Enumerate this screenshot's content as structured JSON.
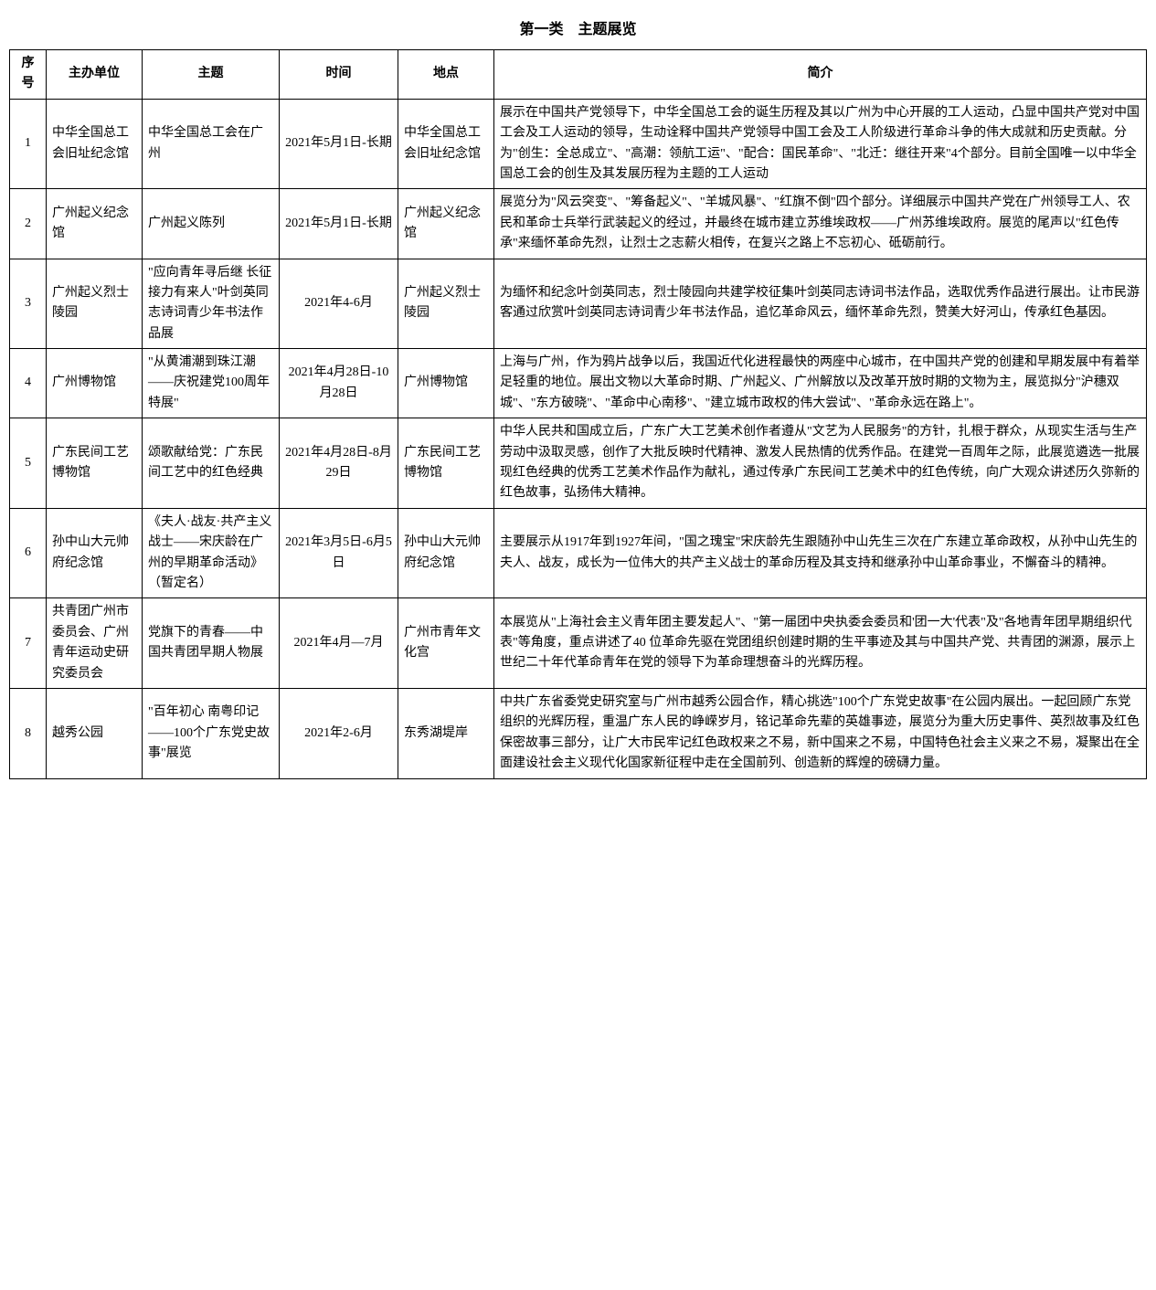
{
  "title": "第一类　主题展览",
  "headers": {
    "idx": "序号",
    "org": "主办单位",
    "theme": "主题",
    "time": "时间",
    "loc": "地点",
    "desc": "简介"
  },
  "rows": [
    {
      "idx": "1",
      "org": "中华全国总工会旧址纪念馆",
      "theme": "中华全国总工会在广州",
      "time": "2021年5月1日-长期",
      "loc": "中华全国总工会旧址纪念馆",
      "desc": "展示在中国共产党领导下，中华全国总工会的诞生历程及其以广州为中心开展的工人运动，凸显中国共产党对中国工会及工人运动的领导，生动诠释中国共产党领导中国工会及工人阶级进行革命斗争的伟大成就和历史贡献。分为\"创生：全总成立\"、\"高潮：领航工运\"、\"配合：国民革命\"、\"北迁：继往开来\"4个部分。目前全国唯一以中华全国总工会的创生及其发展历程为主题的工人运动"
    },
    {
      "idx": "2",
      "org": "广州起义纪念馆",
      "theme": "广州起义陈列",
      "time": "2021年5月1日-长期",
      "loc": "广州起义纪念馆",
      "desc": "展览分为\"风云突变\"、\"筹备起义\"、\"羊城风暴\"、\"红旗不倒\"四个部分。详细展示中国共产党在广州领导工人、农民和革命士兵举行武装起义的经过，并最终在城市建立苏维埃政权——广州苏维埃政府。展览的尾声以\"红色传承\"来缅怀革命先烈，让烈士之志薪火相传，在复兴之路上不忘初心、砥砺前行。"
    },
    {
      "idx": "3",
      "org": "广州起义烈士陵园",
      "theme": "\"应向青年寻后继 长征接力有来人\"叶剑英同志诗词青少年书法作品展",
      "time": "2021年4-6月",
      "loc": "广州起义烈士陵园",
      "desc": "为缅怀和纪念叶剑英同志，烈士陵园向共建学校征集叶剑英同志诗词书法作品，选取优秀作品进行展出。让市民游客通过欣赏叶剑英同志诗词青少年书法作品，追忆革命风云，缅怀革命先烈，赞美大好河山，传承红色基因。"
    },
    {
      "idx": "4",
      "org": "广州博物馆",
      "theme": "\"从黄浦潮到珠江潮——庆祝建党100周年特展\"",
      "time": "2021年4月28日-10月28日",
      "loc": "广州博物馆",
      "desc": "上海与广州，作为鸦片战争以后，我国近代化进程最快的两座中心城市，在中国共产党的创建和早期发展中有着举足轻重的地位。展出文物以大革命时期、广州起义、广州解放以及改革开放时期的文物为主，展览拟分\"沪穗双城\"、\"东方破晓\"、\"革命中心南移\"、\"建立城市政权的伟大尝试\"、\"革命永远在路上\"。"
    },
    {
      "idx": "5",
      "org": "广东民间工艺博物馆",
      "theme": "颂歌献给党：广东民间工艺中的红色经典",
      "time": "2021年4月28日-8月29日",
      "loc": "广东民间工艺博物馆",
      "desc": "中华人民共和国成立后，广东广大工艺美术创作者遵从\"文艺为人民服务\"的方针，扎根于群众，从现实生活与生产劳动中汲取灵感，创作了大批反映时代精神、激发人民热情的优秀作品。在建党一百周年之际，此展览遴选一批展现红色经典的优秀工艺美术作品作为献礼，通过传承广东民间工艺美术中的红色传统，向广大观众讲述历久弥新的红色故事，弘扬伟大精神。"
    },
    {
      "idx": "6",
      "org": "孙中山大元帅府纪念馆",
      "theme": "《夫人·战友·共产主义战士——宋庆龄在广州的早期革命活动》（暂定名）",
      "time": "2021年3月5日-6月5日",
      "loc": "孙中山大元帅府纪念馆",
      "desc": "主要展示从1917年到1927年间，\"国之瑰宝\"宋庆龄先生跟随孙中山先生三次在广东建立革命政权，从孙中山先生的夫人、战友，成长为一位伟大的共产主义战士的革命历程及其支持和继承孙中山革命事业，不懈奋斗的精神。"
    },
    {
      "idx": "7",
      "org": "共青团广州市委员会、广州青年运动史研究委员会",
      "theme": "党旗下的青春——中国共青团早期人物展",
      "time": "2021年4月—7月",
      "loc": "广州市青年文化宫",
      "desc": "本展览从\"上海社会主义青年团主要发起人\"、\"第一届团中央执委会委员和'团一大'代表\"及\"各地青年团早期组织代表\"等角度，重点讲述了40 位革命先驱在党团组织创建时期的生平事迹及其与中国共产党、共青团的渊源，展示上世纪二十年代革命青年在党的领导下为革命理想奋斗的光辉历程。"
    },
    {
      "idx": "8",
      "org": "越秀公园",
      "theme": "\"百年初心 南粤印记——100个广东党史故事\"展览",
      "time": "2021年2-6月",
      "loc": "东秀湖堤岸",
      "desc": "中共广东省委党史研究室与广州市越秀公园合作，精心挑选\"100个广东党史故事\"在公园内展出。一起回顾广东党组织的光辉历程，重温广东人民的峥嵘岁月，铭记革命先辈的英雄事迹，展览分为重大历史事件、英烈故事及红色保密故事三部分，让广大市民牢记红色政权来之不易，新中国来之不易，中国特色社会主义来之不易，凝聚出在全面建设社会主义现代化国家新征程中走在全国前列、创造新的辉煌的磅礴力量。"
    }
  ]
}
